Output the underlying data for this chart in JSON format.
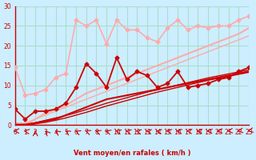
{
  "xlabel": "Vent moyen/en rafales ( km/h )",
  "bg_color": "#cceeff",
  "grid_color": "#aaddcc",
  "text_color": "#cc0000",
  "xlim": [
    0,
    23
  ],
  "ylim": [
    0,
    30
  ],
  "yticks": [
    0,
    5,
    10,
    15,
    20,
    25,
    30
  ],
  "xticks": [
    0,
    1,
    2,
    3,
    4,
    5,
    6,
    7,
    8,
    9,
    10,
    11,
    12,
    13,
    14,
    15,
    16,
    17,
    18,
    19,
    20,
    21,
    22,
    23
  ],
  "series": [
    {
      "x": [
        0,
        1,
        2,
        3,
        4,
        5,
        6,
        7,
        8,
        9,
        10,
        11,
        12,
        13,
        14,
        15,
        16,
        17,
        18,
        19,
        20,
        21,
        22,
        23
      ],
      "y": [
        14.5,
        7.5,
        8.0,
        9.0,
        12.0,
        13.0,
        26.5,
        25.0,
        26.5,
        20.5,
        26.5,
        24.0,
        24.0,
        22.0,
        21.0,
        24.5,
        26.5,
        24.0,
        25.0,
        24.5,
        25.0,
        25.0,
        26.5,
        27.5
      ],
      "color": "#ffaaaa",
      "lw": 1.2,
      "marker": "D",
      "ms": 2.5
    },
    {
      "x": [
        0,
        1,
        2,
        3,
        4,
        5,
        6,
        7,
        8,
        9,
        10,
        11,
        12,
        13,
        14,
        15,
        16,
        17,
        18,
        19,
        20,
        21,
        22,
        23
      ],
      "y": [
        0.0,
        0.0,
        1.5,
        3.0,
        4.0,
        5.0,
        6.5,
        8.0,
        9.0,
        10.0,
        11.0,
        12.0,
        13.0,
        14.0,
        15.0,
        16.0,
        17.0,
        18.0,
        19.0,
        20.0,
        21.0,
        22.0,
        23.0,
        24.5
      ],
      "color": "#ffaaaa",
      "lw": 1.5,
      "marker": null,
      "ms": 0
    },
    {
      "x": [
        0,
        1,
        2,
        3,
        4,
        5,
        6,
        7,
        8,
        9,
        10,
        11,
        12,
        13,
        14,
        15,
        16,
        17,
        18,
        19,
        20,
        21,
        22,
        23
      ],
      "y": [
        0.5,
        0.5,
        1.5,
        2.5,
        3.5,
        4.5,
        5.5,
        6.5,
        7.5,
        8.5,
        9.5,
        10.5,
        11.5,
        12.5,
        13.5,
        14.5,
        15.5,
        16.5,
        17.5,
        18.5,
        19.5,
        20.5,
        21.5,
        22.5
      ],
      "color": "#ffaaaa",
      "lw": 1.0,
      "marker": null,
      "ms": 0
    },
    {
      "x": [
        0,
        1,
        2,
        3,
        4,
        5,
        6,
        7,
        8,
        9,
        10,
        11,
        12,
        13,
        14,
        15,
        16,
        17,
        18,
        19,
        20,
        21,
        22,
        23
      ],
      "y": [
        4.0,
        1.5,
        3.5,
        3.5,
        4.0,
        5.5,
        9.5,
        15.5,
        13.0,
        9.5,
        17.0,
        11.5,
        13.5,
        12.5,
        9.5,
        10.5,
        13.5,
        9.5,
        10.0,
        10.5,
        11.5,
        12.0,
        13.5,
        14.5
      ],
      "color": "#cc0000",
      "lw": 1.3,
      "marker": "D",
      "ms": 2.5
    },
    {
      "x": [
        0,
        1,
        2,
        3,
        4,
        5,
        6,
        7,
        8,
        9,
        10,
        11,
        12,
        13,
        14,
        15,
        16,
        17,
        18,
        19,
        20,
        21,
        22,
        23
      ],
      "y": [
        0.0,
        0.0,
        0.5,
        1.0,
        1.5,
        2.5,
        3.5,
        4.5,
        5.5,
        6.5,
        7.0,
        7.5,
        8.0,
        8.5,
        9.0,
        9.5,
        10.0,
        10.5,
        11.0,
        11.5,
        12.0,
        12.5,
        13.0,
        13.5
      ],
      "color": "#cc0000",
      "lw": 1.5,
      "marker": null,
      "ms": 0
    },
    {
      "x": [
        0,
        1,
        2,
        3,
        4,
        5,
        6,
        7,
        8,
        9,
        10,
        11,
        12,
        13,
        14,
        15,
        16,
        17,
        18,
        19,
        20,
        21,
        22,
        23
      ],
      "y": [
        0.0,
        0.0,
        0.3,
        0.7,
        1.2,
        1.8,
        2.5,
        3.2,
        4.0,
        4.8,
        5.5,
        6.2,
        6.9,
        7.6,
        8.3,
        8.9,
        9.5,
        10.1,
        10.7,
        11.3,
        11.8,
        12.3,
        12.8,
        13.3
      ],
      "color": "#cc0000",
      "lw": 1.0,
      "marker": null,
      "ms": 0
    },
    {
      "x": [
        0,
        1,
        2,
        3,
        4,
        5,
        6,
        7,
        8,
        9,
        10,
        11,
        12,
        13,
        14,
        15,
        16,
        17,
        18,
        19,
        20,
        21,
        22,
        23
      ],
      "y": [
        0.2,
        0.2,
        0.6,
        1.2,
        1.8,
        2.4,
        3.1,
        3.9,
        4.7,
        5.5,
        6.2,
        6.9,
        7.6,
        8.3,
        8.9,
        9.5,
        10.1,
        10.7,
        11.3,
        11.9,
        12.4,
        12.9,
        13.4,
        13.9
      ],
      "color": "#cc0000",
      "lw": 1.0,
      "marker": null,
      "ms": 0
    }
  ],
  "arrow_angles": [
    270,
    250,
    180,
    200,
    210,
    215,
    220,
    225,
    225,
    230,
    235,
    238,
    240,
    242,
    245,
    248,
    250,
    252,
    255,
    260,
    270,
    280,
    290,
    300
  ]
}
